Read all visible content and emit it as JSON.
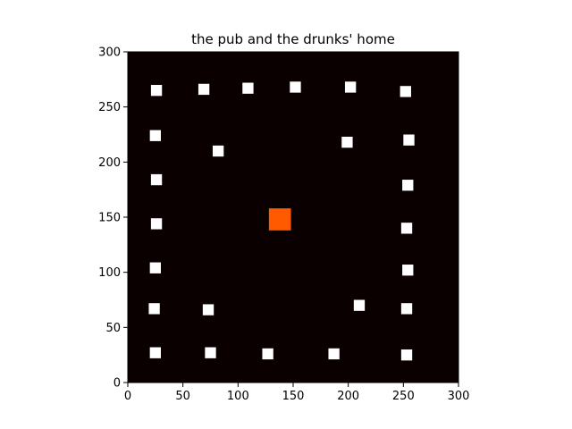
{
  "chart_data": {
    "type": "heatmap",
    "title": "the pub and the drunks' home",
    "xlabel": "",
    "ylabel": "",
    "xlim": [
      0,
      300
    ],
    "ylim": [
      0,
      300
    ],
    "x_ticks": [
      "0",
      "50",
      "100",
      "150",
      "200",
      "250",
      "300"
    ],
    "y_ticks": [
      "0",
      "50",
      "100",
      "150",
      "200",
      "250",
      "300"
    ],
    "grid": false,
    "background_color": "#0a0000",
    "home_color": "#ffffff",
    "pub_color": "#ff5a00",
    "pub": {
      "x": 138,
      "y": 148,
      "size": 20
    },
    "homes": [
      {
        "x": 26,
        "y": 265
      },
      {
        "x": 69,
        "y": 266
      },
      {
        "x": 109,
        "y": 267
      },
      {
        "x": 152,
        "y": 268
      },
      {
        "x": 202,
        "y": 268
      },
      {
        "x": 252,
        "y": 264
      },
      {
        "x": 25,
        "y": 224
      },
      {
        "x": 82,
        "y": 210
      },
      {
        "x": 199,
        "y": 218
      },
      {
        "x": 255,
        "y": 220
      },
      {
        "x": 26,
        "y": 184
      },
      {
        "x": 254,
        "y": 179
      },
      {
        "x": 26,
        "y": 144
      },
      {
        "x": 253,
        "y": 140
      },
      {
        "x": 25,
        "y": 104
      },
      {
        "x": 254,
        "y": 102
      },
      {
        "x": 24,
        "y": 67
      },
      {
        "x": 73,
        "y": 66
      },
      {
        "x": 210,
        "y": 70
      },
      {
        "x": 253,
        "y": 67
      },
      {
        "x": 25,
        "y": 27
      },
      {
        "x": 75,
        "y": 27
      },
      {
        "x": 127,
        "y": 26
      },
      {
        "x": 187,
        "y": 26
      },
      {
        "x": 253,
        "y": 25
      }
    ],
    "home_size": 10
  }
}
